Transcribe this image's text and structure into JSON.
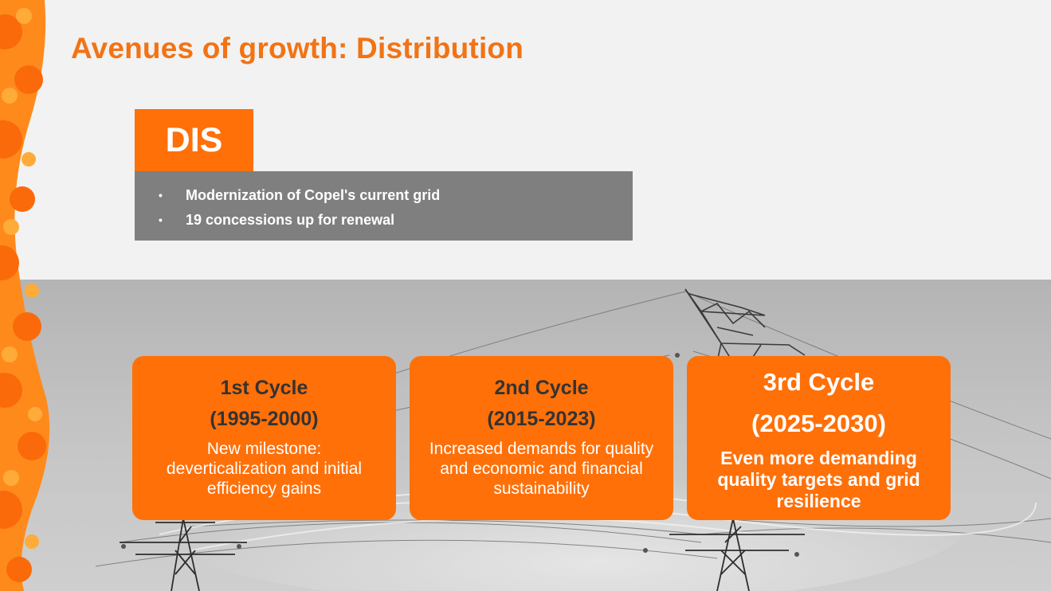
{
  "slide": {
    "title": "Avenues of growth: Distribution"
  },
  "segment": {
    "tab_label": "DIS",
    "bullet_char": "•",
    "bullets": [
      "Modernization of Copel's current grid",
      "19 concessions up for renewal"
    ]
  },
  "cycles": [
    {
      "name": "1st Cycle",
      "years": "(1995-2000)",
      "description": "New milestone: deverticalization and initial efficiency gains"
    },
    {
      "name": "2nd Cycle",
      "years": "(2015-2023)",
      "description": "Increased demands for quality and economic and financial sustainability"
    },
    {
      "name": "3rd Cycle",
      "years": "(2025-2030)",
      "description": "Even more demanding quality targets and grid resilience"
    }
  ],
  "colors": {
    "accent_orange": "#ff7009",
    "title_orange": "#f27315",
    "box_gray": "#7f7f7f",
    "background": "#f2f2f2"
  },
  "icons": {
    "decoration": "orange-wave-pattern",
    "background_image": "power-transmission-towers-photo"
  }
}
